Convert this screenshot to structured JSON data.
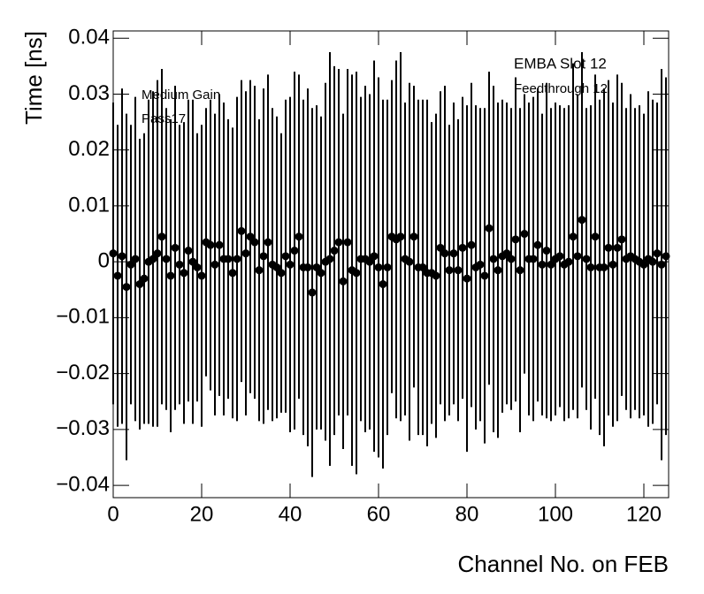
{
  "chart_data": {
    "type": "scatter",
    "xlabel": "Channel No. on FEB",
    "ylabel": "Time [ns]",
    "annotations": [
      "EMBA Slot 12",
      "Feedthrough 12",
      "Medium Gain",
      "Pass17"
    ],
    "color": "#000000",
    "xlim": [
      0,
      125.6
    ],
    "ylim": [
      -0.0422,
      0.0413
    ],
    "xticks": [
      0,
      20,
      40,
      60,
      80,
      100,
      120
    ],
    "yticks": [
      {
        "value": -0.04,
        "label": "−0.04"
      },
      {
        "value": -0.03,
        "label": "−0.03"
      },
      {
        "value": -0.02,
        "label": "−0.02"
      },
      {
        "value": -0.01,
        "label": "−0.01"
      },
      0,
      0.01,
      0.02,
      0.03,
      0.04
    ],
    "x": [
      0,
      1,
      2,
      3,
      4,
      5,
      6,
      7,
      8,
      9,
      10,
      11,
      12,
      13,
      14,
      15,
      16,
      17,
      18,
      19,
      20,
      21,
      22,
      23,
      24,
      25,
      26,
      27,
      28,
      29,
      30,
      31,
      32,
      33,
      34,
      35,
      36,
      37,
      38,
      39,
      40,
      41,
      42,
      43,
      44,
      45,
      46,
      47,
      48,
      49,
      50,
      51,
      52,
      53,
      54,
      55,
      56,
      57,
      58,
      59,
      60,
      61,
      62,
      63,
      64,
      65,
      66,
      67,
      68,
      69,
      70,
      71,
      72,
      73,
      74,
      75,
      76,
      77,
      78,
      79,
      80,
      81,
      82,
      83,
      84,
      85,
      86,
      87,
      88,
      89,
      90,
      91,
      92,
      93,
      94,
      95,
      96,
      97,
      98,
      99,
      100,
      101,
      102,
      103,
      104,
      105,
      106,
      107,
      108,
      109,
      110,
      111,
      112,
      113,
      114,
      115,
      116,
      117,
      118,
      119,
      120,
      121,
      122,
      123,
      124,
      125
    ],
    "values": [
      0.0015,
      -0.0025,
      0.001,
      -0.0045,
      -0.0005,
      0.0005,
      -0.004,
      -0.003,
      0,
      0.0005,
      0.0015,
      0.0045,
      0.0005,
      -0.0025,
      0.0025,
      -0.0005,
      -0.002,
      0.002,
      0,
      -0.001,
      -0.0025,
      0.0035,
      0.003,
      -0.0005,
      0.003,
      0.0005,
      0.0005,
      -0.002,
      0.0005,
      0.0055,
      0.0015,
      0.0045,
      0.0035,
      -0.0015,
      0.001,
      0.0035,
      -0.0005,
      -0.001,
      -0.002,
      0.001,
      -0.0005,
      0.002,
      0.0045,
      -0.001,
      -0.001,
      -0.0055,
      -0.001,
      -0.002,
      0,
      0.0005,
      0.002,
      0.0035,
      -0.0035,
      0.0035,
      -0.0015,
      -0.002,
      0.0005,
      0.0005,
      0,
      0.001,
      -0.001,
      -0.004,
      -0.001,
      0.0045,
      0.004,
      0.0045,
      0.0005,
      0,
      0.0045,
      -0.001,
      -0.001,
      -0.002,
      -0.002,
      -0.0025,
      0.0025,
      0.0015,
      -0.0015,
      0.0015,
      -0.0015,
      0.0025,
      -0.003,
      0.003,
      -0.001,
      -0.0005,
      -0.0025,
      0.006,
      0.0005,
      -0.0015,
      0.001,
      0.0015,
      0.0005,
      0.004,
      -0.0015,
      0.005,
      0.0005,
      0.0005,
      0.003,
      -0.0005,
      0.002,
      -0.0005,
      0.0005,
      0.001,
      -0.0005,
      0,
      0.0045,
      0.001,
      0.0075,
      0.0005,
      -0.001,
      0.0045,
      -0.001,
      -0.001,
      0.0025,
      -0.0005,
      0.0025,
      0.004,
      0.0005,
      0.001,
      0.0005,
      0,
      -0.0005,
      0.0005,
      0,
      0.0015,
      -0.0005,
      0.001
    ],
    "errors": [
      0.027,
      0.027,
      0.03,
      0.031,
      0.025,
      0.029,
      0.026,
      0.026,
      0.029,
      0.03,
      0.031,
      0.03,
      0.027,
      0.028,
      0.029,
      0.025,
      0.027,
      0.027,
      0.029,
      0.024,
      0.027,
      0.024,
      0.026,
      0.027,
      0.027,
      0.028,
      0.025,
      0.026,
      0.029,
      0.027,
      0.029,
      0.028,
      0.028,
      0.027,
      0.03,
      0.03,
      0.028,
      0.027,
      0.025,
      0.028,
      0.03,
      0.032,
      0.029,
      0.03,
      0.032,
      0.033,
      0.029,
      0.028,
      0.032,
      0.037,
      0.033,
      0.031,
      0.03,
      0.031,
      0.035,
      0.036,
      0.029,
      0.031,
      0.03,
      0.035,
      0.034,
      0.033,
      0.03,
      0.028,
      0.032,
      0.033,
      0.028,
      0.032,
      0.027,
      0.03,
      0.03,
      0.031,
      0.027,
      0.029,
      0.028,
      0.03,
      0.026,
      0.027,
      0.027,
      0.027,
      0.031,
      0.029,
      0.029,
      0.028,
      0.03,
      0.028,
      0.031,
      0.03,
      0.028,
      0.027,
      0.027,
      0.029,
      0.029,
      0.025,
      0.028,
      0.029,
      0.028,
      0.027,
      0.03,
      0.028,
      0.028,
      0.027,
      0.028,
      0.028,
      0.031,
      0.029,
      0.03,
      0.027,
      0.029,
      0.029,
      0.03,
      0.032,
      0.03,
      0.029,
      0.031,
      0.028,
      0.027,
      0.029,
      0.027,
      0.028,
      0.027,
      0.03,
      0.029,
      0.027,
      0.035,
      0.032
    ]
  }
}
